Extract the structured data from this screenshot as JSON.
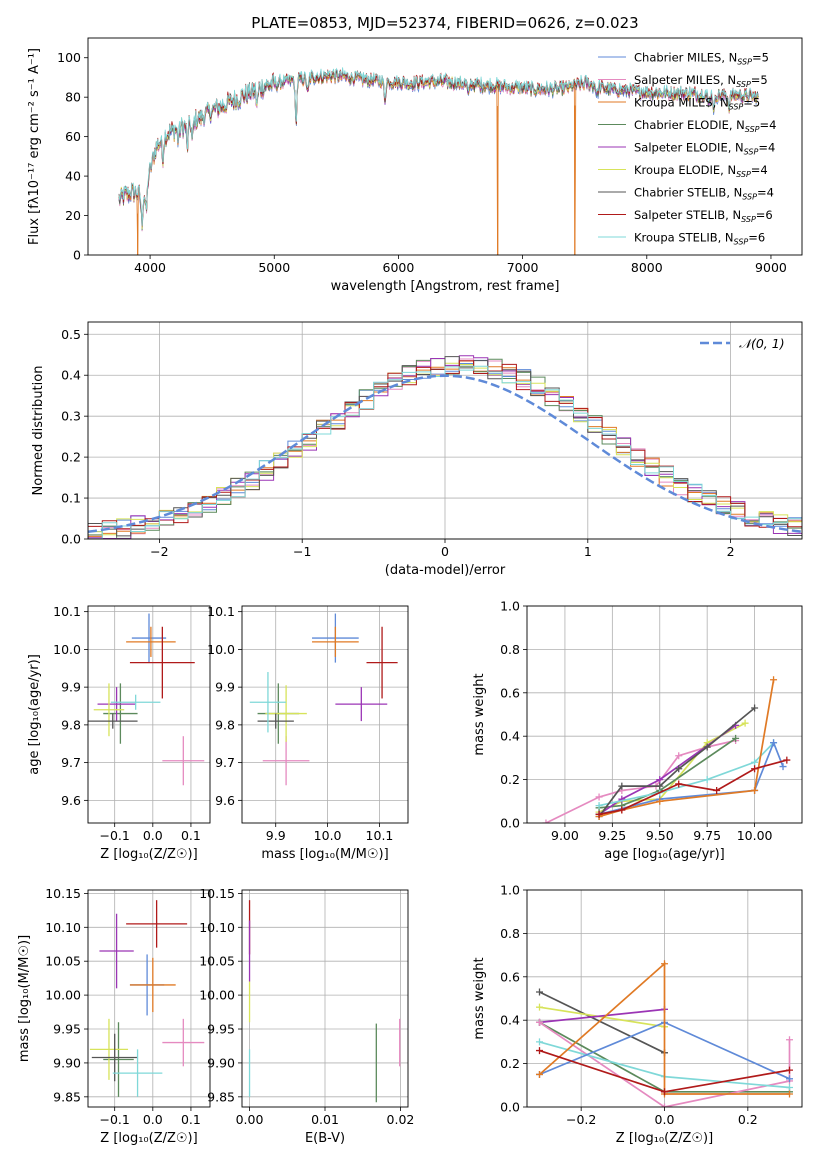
{
  "figure_title": "PLATE=0853, MJD=52374, FIBERID=0626, z=0.023",
  "colors": {
    "Chabrier MILES": "#5f8ad8",
    "Salpeter MILES": "#e58ac0",
    "Kroupa MILES": "#e07a25",
    "Chabrier ELODIE": "#5c8a5c",
    "Salpeter ELODIE": "#9b35b5",
    "Kroupa ELODIE": "#d7e35a",
    "Chabrier STELIB": "#555555",
    "Salpeter STELIB": "#b01a1a",
    "Kroupa STELIB": "#7fd8d8"
  },
  "chart_data": [
    {
      "id": "spectrum",
      "type": "line",
      "title": "PLATE=0853, MJD=52374, FIBERID=0626, z=0.023",
      "xlabel": "wavelength [Angstrom, rest frame]",
      "ylabel": "Flux [fλ10⁻¹⁷ erg cm⁻² s⁻¹ A⁻¹]",
      "xlim": [
        3500,
        9250
      ],
      "ylim": [
        0,
        110
      ],
      "xticks": [
        4000,
        5000,
        6000,
        7000,
        8000,
        9000
      ],
      "yticks": [
        0,
        20,
        40,
        60,
        80,
        100
      ],
      "grid": false,
      "legend_position": "top-right",
      "legend": [
        {
          "series": "Chabrier MILES",
          "label": "Chabrier MILES, N",
          "sub": "SSP",
          "suffix": "=5"
        },
        {
          "series": "Salpeter MILES",
          "label": "Salpeter MILES, N",
          "sub": "SSP",
          "suffix": "=5"
        },
        {
          "series": "Kroupa MILES",
          "label": "Kroupa MILES, N",
          "sub": "SSP",
          "suffix": "=5"
        },
        {
          "series": "Chabrier ELODIE",
          "label": "Chabrier ELODIE, N",
          "sub": "SSP",
          "suffix": "=4"
        },
        {
          "series": "Salpeter ELODIE",
          "label": "Salpeter ELODIE, N",
          "sub": "SSP",
          "suffix": "=4"
        },
        {
          "series": "Kroupa ELODIE",
          "label": "Kroupa ELODIE, N",
          "sub": "SSP",
          "suffix": "=4"
        },
        {
          "series": "Chabrier STELIB",
          "label": "Chabrier STELIB, N",
          "sub": "SSP",
          "suffix": "=4"
        },
        {
          "series": "Salpeter STELIB",
          "label": "Salpeter STELIB, N",
          "sub": "SSP",
          "suffix": "=6"
        },
        {
          "series": "Kroupa STELIB",
          "label": "Kroupa STELIB, N",
          "sub": "SSP",
          "suffix": "=6"
        }
      ],
      "continuum": [
        [
          3750,
          28
        ],
        [
          3850,
          32
        ],
        [
          3950,
          30
        ],
        [
          4050,
          55
        ],
        [
          4150,
          62
        ],
        [
          4300,
          66
        ],
        [
          4500,
          73
        ],
        [
          4700,
          79
        ],
        [
          4900,
          85
        ],
        [
          5100,
          88
        ],
        [
          5300,
          90
        ],
        [
          5500,
          91
        ],
        [
          5700,
          89
        ],
        [
          5900,
          88
        ],
        [
          6100,
          87
        ],
        [
          6300,
          88
        ],
        [
          6500,
          87
        ],
        [
          6700,
          86
        ],
        [
          6900,
          85
        ],
        [
          7100,
          84
        ],
        [
          7300,
          84
        ],
        [
          7500,
          87
        ],
        [
          7700,
          84
        ],
        [
          7900,
          83
        ],
        [
          8100,
          82
        ],
        [
          8300,
          82
        ],
        [
          8500,
          81
        ],
        [
          8700,
          81
        ],
        [
          8900,
          80
        ]
      ],
      "absorption_lines": [
        [
          3934,
          14
        ],
        [
          3969,
          14
        ],
        [
          4102,
          10
        ],
        [
          4227,
          6
        ],
        [
          4300,
          12
        ],
        [
          4340,
          10
        ],
        [
          4861,
          8
        ],
        [
          5175,
          22
        ],
        [
          5270,
          8
        ],
        [
          5890,
          10
        ],
        [
          6563,
          6
        ],
        [
          7600,
          5
        ],
        [
          8498,
          5
        ],
        [
          8542,
          7
        ],
        [
          8662,
          6
        ]
      ],
      "dropouts": [
        {
          "series": "Kroupa MILES",
          "x": 3900
        },
        {
          "series": "Kroupa MILES",
          "x": 6800
        },
        {
          "series": "Kroupa MILES",
          "x": 7420
        }
      ]
    },
    {
      "id": "residuals",
      "type": "histogram",
      "xlabel": "(data-model)/error",
      "ylabel": "Normed distribution",
      "xlim": [
        -2.5,
        2.5
      ],
      "ylim": [
        0,
        0.53
      ],
      "xticks": [
        -2,
        -1,
        0,
        1,
        2
      ],
      "yticks": [
        0.0,
        0.1,
        0.2,
        0.3,
        0.4,
        0.5
      ],
      "grid": true,
      "legend_position": "top-right",
      "reference_curve": {
        "label": "𝒩(0, 1)",
        "mean": 0,
        "sigma": 1,
        "color": "#5f8ad8"
      },
      "bin_width": 0.1
    },
    {
      "id": "z-age",
      "type": "errorbar",
      "xlabel": "Z [log₁₀(Z/Z☉)]",
      "ylabel": "age [log₁₀(age/yr)]",
      "xlim": [
        -0.17,
        0.15
      ],
      "ylim": [
        9.54,
        10.115
      ],
      "xticks": [
        -0.1,
        0.0,
        0.1
      ],
      "xticklabels": [
        "−0.1",
        "0.0",
        "0.1"
      ],
      "yticks": [
        9.6,
        9.7,
        9.8,
        9.9,
        10.0,
        10.1
      ],
      "grid": true,
      "points": [
        {
          "series": "Chabrier MILES",
          "x": -0.01,
          "y": 10.03,
          "xerr": 0.045,
          "yerr": 0.065
        },
        {
          "series": "Salpeter MILES",
          "x": 0.08,
          "y": 9.705,
          "xerr": 0.055,
          "yerr": 0.065
        },
        {
          "series": "Kroupa MILES",
          "x": -0.005,
          "y": 10.02,
          "xerr": 0.065,
          "yerr": 0.04
        },
        {
          "series": "Chabrier ELODIE",
          "x": -0.085,
          "y": 9.83,
          "xerr": 0.045,
          "yerr": 0.08
        },
        {
          "series": "Salpeter ELODIE",
          "x": -0.095,
          "y": 9.855,
          "xerr": 0.05,
          "yerr": 0.045
        },
        {
          "series": "Kroupa ELODIE",
          "x": -0.115,
          "y": 9.84,
          "xerr": 0.04,
          "yerr": 0.07
        },
        {
          "series": "Chabrier STELIB",
          "x": -0.105,
          "y": 9.81,
          "xerr": 0.065,
          "yerr": 0.02
        },
        {
          "series": "Salpeter STELIB",
          "x": 0.025,
          "y": 9.965,
          "xerr": 0.085,
          "yerr": 0.095
        },
        {
          "series": "Kroupa STELIB",
          "x": -0.045,
          "y": 9.86,
          "xerr": 0.065,
          "yerr": 0.02
        }
      ]
    },
    {
      "id": "mass-age",
      "type": "errorbar",
      "xlabel": "mass [log₁₀(M/M☉)]",
      "ylabel": "",
      "xlim": [
        9.835,
        10.155
      ],
      "ylim": [
        9.54,
        10.115
      ],
      "xticks": [
        9.9,
        10.0,
        10.1
      ],
      "yticks": [
        9.6,
        9.7,
        9.8,
        9.9,
        10.0,
        10.1
      ],
      "grid": true,
      "points": [
        {
          "series": "Chabrier MILES",
          "x": 10.015,
          "y": 10.03,
          "xerr": 0.045,
          "yerr": 0.065
        },
        {
          "series": "Salpeter MILES",
          "x": 9.92,
          "y": 9.705,
          "xerr": 0.045,
          "yerr": 0.065
        },
        {
          "series": "Kroupa MILES",
          "x": 10.015,
          "y": 10.02,
          "xerr": 0.045,
          "yerr": 0.04
        },
        {
          "series": "Chabrier ELODIE",
          "x": 9.905,
          "y": 9.83,
          "xerr": 0.04,
          "yerr": 0.08
        },
        {
          "series": "Salpeter ELODIE",
          "x": 10.065,
          "y": 9.855,
          "xerr": 0.05,
          "yerr": 0.045
        },
        {
          "series": "Kroupa ELODIE",
          "x": 9.92,
          "y": 9.83,
          "xerr": 0.04,
          "yerr": 0.075
        },
        {
          "series": "Chabrier STELIB",
          "x": 9.9,
          "y": 9.81,
          "xerr": 0.035,
          "yerr": 0.02
        },
        {
          "series": "Salpeter STELIB",
          "x": 10.105,
          "y": 9.965,
          "xerr": 0.03,
          "yerr": 0.095
        },
        {
          "series": "Kroupa STELIB",
          "x": 9.885,
          "y": 9.86,
          "xerr": 0.035,
          "yerr": 0.08
        }
      ]
    },
    {
      "id": "age-weight",
      "type": "line",
      "xlabel": "age [log₁₀(age/yr)]",
      "ylabel": "mass weight",
      "xlim": [
        8.8,
        10.25
      ],
      "ylim": [
        0,
        1
      ],
      "xticks": [
        9.0,
        9.25,
        9.5,
        9.75,
        10.0
      ],
      "xticklabels": [
        "9.00",
        "9.25",
        "9.50",
        "9.75",
        "10.00"
      ],
      "yticks": [
        0,
        0.2,
        0.4,
        0.6,
        0.8,
        1.0
      ],
      "yticklabels": [
        "0.0",
        "0.2",
        "0.4",
        "0.6",
        "0.8",
        "1.0"
      ],
      "grid": true,
      "series": [
        {
          "name": "Salpeter MILES",
          "x": [
            8.9,
            9.18,
            9.3,
            9.48,
            9.6,
            9.75,
            9.9
          ],
          "y": [
            0.0,
            0.12,
            0.15,
            0.17,
            0.31,
            0.35,
            0.38
          ]
        },
        {
          "name": "Kroupa ELODIE",
          "x": [
            9.18,
            9.3,
            9.5,
            9.75,
            9.95
          ],
          "y": [
            0.05,
            0.1,
            0.11,
            0.37,
            0.46
          ]
        },
        {
          "name": "Chabrier ELODIE",
          "x": [
            9.18,
            9.3,
            9.5,
            9.9
          ],
          "y": [
            0.07,
            0.08,
            0.15,
            0.39
          ]
        },
        {
          "name": "Salpeter ELODIE",
          "x": [
            9.18,
            9.3,
            9.5,
            9.9
          ],
          "y": [
            0.04,
            0.11,
            0.2,
            0.45
          ]
        },
        {
          "name": "Kroupa STELIB",
          "x": [
            9.18,
            9.5,
            9.75,
            10.0,
            10.1
          ],
          "y": [
            0.08,
            0.14,
            0.2,
            0.28,
            0.37
          ]
        },
        {
          "name": "Chabrier MILES",
          "x": [
            9.18,
            9.5,
            10.0,
            10.1,
            10.15
          ],
          "y": [
            0.04,
            0.11,
            0.15,
            0.37,
            0.26
          ]
        },
        {
          "name": "Chabrier STELIB",
          "x": [
            9.18,
            9.3,
            9.5,
            9.6,
            9.75,
            10.0
          ],
          "y": [
            0.03,
            0.17,
            0.17,
            0.25,
            0.35,
            0.53
          ]
        },
        {
          "name": "Kroupa MILES",
          "x": [
            9.18,
            9.3,
            9.5,
            10.0,
            10.1
          ],
          "y": [
            0.03,
            0.06,
            0.1,
            0.15,
            0.66
          ]
        },
        {
          "name": "Salpeter STELIB",
          "x": [
            9.18,
            9.3,
            9.6,
            9.8,
            10.0,
            10.17
          ],
          "y": [
            0.04,
            0.06,
            0.18,
            0.15,
            0.25,
            0.29
          ]
        }
      ]
    },
    {
      "id": "z-mass",
      "type": "errorbar",
      "xlabel": "Z [log₁₀(Z/Z☉)]",
      "ylabel": "mass [log₁₀(M/M☉)]",
      "xlim": [
        -0.17,
        0.15
      ],
      "ylim": [
        9.835,
        10.155
      ],
      "xticks": [
        -0.1,
        0.0,
        0.1
      ],
      "xticklabels": [
        "−0.1",
        "0.0",
        "0.1"
      ],
      "yticks": [
        9.85,
        9.9,
        9.95,
        10.0,
        10.05,
        10.1,
        10.15
      ],
      "yticklabels": [
        "9.85",
        "9.90",
        "9.95",
        "10.00",
        "10.05",
        "10.10",
        "10.15"
      ],
      "grid": true,
      "points": [
        {
          "series": "Chabrier MILES",
          "x": -0.015,
          "y": 10.015,
          "xerr": 0.045,
          "yerr": 0.045
        },
        {
          "series": "Salpeter MILES",
          "x": 0.08,
          "y": 9.93,
          "xerr": 0.055,
          "yerr": 0.035
        },
        {
          "series": "Kroupa MILES",
          "x": 0.0,
          "y": 10.015,
          "xerr": 0.06,
          "yerr": 0.04
        },
        {
          "series": "Chabrier ELODIE",
          "x": -0.09,
          "y": 9.905,
          "xerr": 0.04,
          "yerr": 0.055
        },
        {
          "series": "Salpeter ELODIE",
          "x": -0.095,
          "y": 10.065,
          "xerr": 0.045,
          "yerr": 0.055
        },
        {
          "series": "Kroupa ELODIE",
          "x": -0.115,
          "y": 9.92,
          "xerr": 0.05,
          "yerr": 0.045
        },
        {
          "series": "Chabrier STELIB",
          "x": -0.1,
          "y": 9.908,
          "xerr": 0.06,
          "yerr": 0.035
        },
        {
          "series": "Salpeter STELIB",
          "x": 0.01,
          "y": 10.105,
          "xerr": 0.08,
          "yerr": 0.035
        },
        {
          "series": "Kroupa STELIB",
          "x": -0.04,
          "y": 9.885,
          "xerr": 0.065,
          "yerr": 0.035
        }
      ]
    },
    {
      "id": "ebv-mass",
      "type": "errorbar",
      "xlabel": "E(B-V)",
      "ylabel": "",
      "xlim": [
        -0.001,
        0.021
      ],
      "ylim": [
        9.835,
        10.155
      ],
      "xticks": [
        0.0,
        0.01,
        0.02
      ],
      "xticklabels": [
        "0.00",
        "0.01",
        "0.02"
      ],
      "yticks": [
        9.85,
        9.9,
        9.95,
        10.0,
        10.05,
        10.1,
        10.15
      ],
      "yticklabels": [
        "9.85",
        "9.90",
        "9.95",
        "10.00",
        "10.05",
        "10.10",
        "10.15"
      ],
      "grid": true,
      "points": [
        {
          "series": "Salpeter STELIB",
          "x": 0.0,
          "y": 10.1,
          "xerr": 0.0,
          "yerr": 0.04
        },
        {
          "series": "Salpeter ELODIE",
          "x": 0.0,
          "y": 10.065,
          "xerr": 0.0,
          "yerr": 0.045
        },
        {
          "series": "Kroupa ELODIE",
          "x": 0.0,
          "y": 9.99,
          "xerr": 0.0,
          "yerr": 0.03
        },
        {
          "series": "Kroupa STELIB",
          "x": 0.0,
          "y": 9.885,
          "xerr": 0.0,
          "yerr": 0.035
        },
        {
          "series": "Chabrier ELODIE",
          "x": 0.0168,
          "y": 9.9,
          "xerr": 0.0,
          "yerr": 0.058
        },
        {
          "series": "Salpeter MILES",
          "x": 0.0199,
          "y": 9.93,
          "xerr": 0.0,
          "yerr": 0.035
        }
      ]
    },
    {
      "id": "z-weight",
      "type": "line",
      "xlabel": "Z [log₁₀(Z/Z☉)]",
      "ylabel": "mass weight",
      "xlim": [
        -0.33,
        0.33
      ],
      "ylim": [
        0,
        1
      ],
      "xticks": [
        -0.2,
        0.0,
        0.2
      ],
      "xticklabels": [
        "−0.2",
        "0.0",
        "0.2"
      ],
      "yticks": [
        0,
        0.2,
        0.4,
        0.6,
        0.8,
        1.0
      ],
      "yticklabels": [
        "0.0",
        "0.2",
        "0.4",
        "0.6",
        "0.8",
        "1.0"
      ],
      "grid": true,
      "series": [
        {
          "name": "Chabrier STELIB",
          "x": [
            -0.3,
            0.0,
            0.0
          ],
          "y": [
            0.53,
            0.25,
            0.25
          ]
        },
        {
          "name": "Kroupa ELODIE",
          "x": [
            -0.3,
            0.0,
            0.0
          ],
          "y": [
            0.46,
            0.37,
            0.37
          ]
        },
        {
          "name": "Salpeter ELODIE",
          "x": [
            -0.3,
            0.0,
            0.0
          ],
          "y": [
            0.39,
            0.45,
            0.45
          ]
        },
        {
          "name": "Chabrier ELODIE",
          "x": [
            -0.3,
            0.0,
            0.3
          ],
          "y": [
            0.39,
            0.07,
            0.07
          ]
        },
        {
          "name": "Salpeter MILES",
          "x": [
            -0.3,
            0.0,
            0.3,
            0.3
          ],
          "y": [
            0.39,
            0.0,
            0.12,
            0.31
          ]
        },
        {
          "name": "Kroupa STELIB",
          "x": [
            -0.3,
            0.0,
            0.3
          ],
          "y": [
            0.3,
            0.14,
            0.09
          ]
        },
        {
          "name": "Chabrier MILES",
          "x": [
            -0.3,
            0.0,
            0.3
          ],
          "y": [
            0.15,
            0.39,
            0.13
          ]
        },
        {
          "name": "Kroupa MILES",
          "x": [
            -0.3,
            0.0,
            0.0,
            0.3
          ],
          "y": [
            0.15,
            0.66,
            0.06,
            0.06
          ]
        },
        {
          "name": "Salpeter STELIB",
          "x": [
            -0.3,
            0.0,
            0.3
          ],
          "y": [
            0.26,
            0.07,
            0.17
          ]
        }
      ]
    }
  ]
}
